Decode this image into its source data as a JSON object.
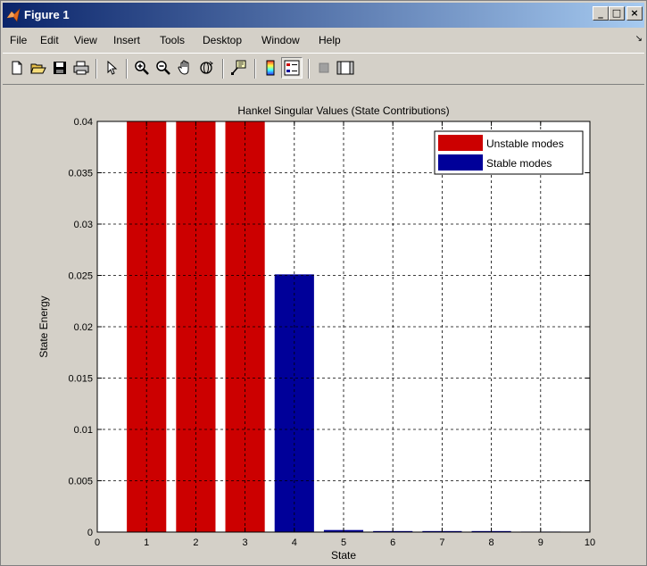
{
  "window": {
    "title": "Figure 1",
    "controls": {
      "minimize": "_",
      "maximize": "□",
      "close": "×"
    }
  },
  "menu": [
    "File",
    "Edit",
    "View",
    "Insert",
    "Tools",
    "Desktop",
    "Window",
    "Help"
  ],
  "toolbar": {
    "buttons": [
      {
        "name": "new-figure-icon"
      },
      {
        "name": "open-file-icon"
      },
      {
        "name": "save-figure-icon"
      },
      {
        "name": "print-figure-icon"
      },
      {
        "name": "edit-plot-arrow-icon"
      },
      {
        "name": "zoom-in-icon"
      },
      {
        "name": "zoom-out-icon"
      },
      {
        "name": "pan-hand-icon"
      },
      {
        "name": "rotate-3d-icon"
      },
      {
        "name": "data-cursor-icon"
      },
      {
        "name": "insert-colorbar-icon"
      },
      {
        "name": "insert-legend-icon",
        "pressed": true
      },
      {
        "name": "hide-plot-tools-icon"
      },
      {
        "name": "show-plot-tools-icon"
      }
    ]
  },
  "chart_data": {
    "type": "bar",
    "title": "Hankel Singular Values (State Contributions)",
    "xlabel": "State",
    "ylabel": "State Energy",
    "xlim": [
      0,
      10
    ],
    "ylim": [
      0,
      0.04
    ],
    "xticks": [
      "0",
      "1",
      "2",
      "3",
      "4",
      "5",
      "6",
      "7",
      "8",
      "9",
      "10"
    ],
    "yticks": [
      "0",
      "0.005",
      "0.01",
      "0.015",
      "0.02",
      "0.025",
      "0.03",
      "0.035",
      "0.04"
    ],
    "grid": true,
    "legend": {
      "placement": "top-right"
    },
    "series": [
      {
        "name": "Unstable modes",
        "color": "#cc0000",
        "x": [
          1,
          2,
          3
        ],
        "values": [
          0.04,
          0.04,
          0.04
        ]
      },
      {
        "name": "Stable modes",
        "color": "#000099",
        "x": [
          4,
          5,
          6,
          7,
          8,
          9
        ],
        "values": [
          0.0251,
          0.0002,
          0.0001,
          0.0001,
          0.0001,
          5e-05
        ]
      }
    ]
  }
}
